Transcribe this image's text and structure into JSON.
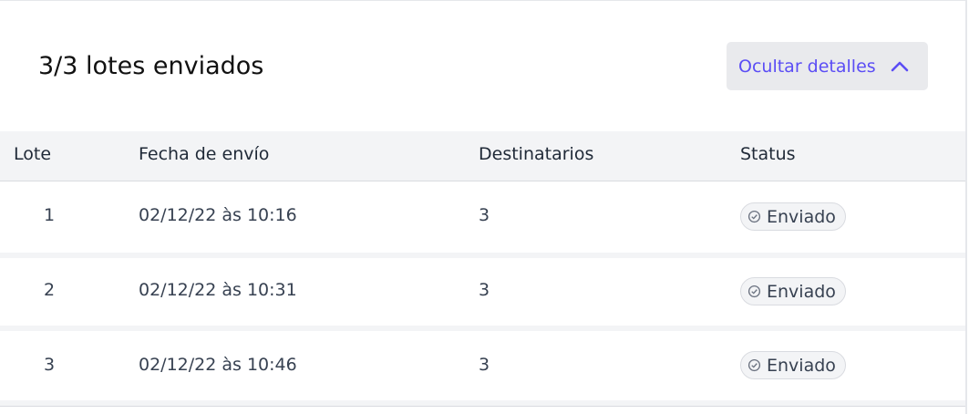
{
  "header": {
    "title": "3/3 lotes enviados",
    "toggle_label": "Ocultar detalles",
    "toggle_icon": "chevron-up-icon",
    "accent": "#5b4df5"
  },
  "table": {
    "columns": [
      "Lote",
      "Fecha de envío",
      "Destinatarios",
      "Status"
    ],
    "rows": [
      {
        "lote": "1",
        "fecha": "02/12/22 às 10:16",
        "destinatarios": "3",
        "status": "Enviado"
      },
      {
        "lote": "2",
        "fecha": "02/12/22 às 10:31",
        "destinatarios": "3",
        "status": "Enviado"
      },
      {
        "lote": "3",
        "fecha": "02/12/22 às 10:46",
        "destinatarios": "3",
        "status": "Enviado"
      }
    ],
    "status_icon": "check-circle-icon"
  }
}
